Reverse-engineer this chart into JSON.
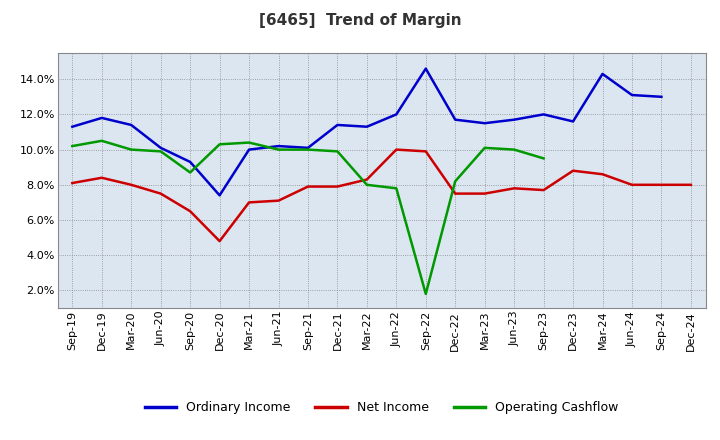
{
  "title": "[6465]  Trend of Margin",
  "x_labels": [
    "Sep-19",
    "Dec-19",
    "Mar-20",
    "Jun-20",
    "Sep-20",
    "Dec-20",
    "Mar-21",
    "Jun-21",
    "Sep-21",
    "Dec-21",
    "Mar-22",
    "Jun-22",
    "Sep-22",
    "Dec-22",
    "Mar-23",
    "Jun-23",
    "Sep-23",
    "Dec-23",
    "Mar-24",
    "Jun-24",
    "Sep-24",
    "Dec-24"
  ],
  "ordinary_income": [
    11.3,
    11.8,
    11.4,
    10.1,
    9.3,
    7.4,
    10.0,
    10.2,
    10.1,
    11.4,
    11.3,
    12.0,
    14.6,
    11.7,
    11.5,
    11.7,
    12.0,
    11.6,
    14.3,
    13.1,
    13.0,
    null
  ],
  "net_income": [
    8.1,
    8.4,
    8.0,
    7.5,
    6.5,
    4.8,
    7.0,
    7.1,
    7.9,
    7.9,
    8.3,
    10.0,
    9.9,
    7.5,
    7.5,
    7.8,
    7.7,
    8.8,
    8.6,
    8.0,
    8.0,
    8.0
  ],
  "operating_cashflow": [
    10.2,
    10.5,
    10.0,
    9.9,
    8.7,
    10.3,
    10.4,
    10.0,
    10.0,
    9.9,
    8.0,
    7.8,
    1.8,
    8.2,
    10.1,
    10.0,
    9.5,
    null,
    null,
    null,
    null,
    null
  ],
  "ordinary_income_color": "#0000cc",
  "net_income_color": "#cc0000",
  "operating_cashflow_color": "#009900",
  "background_color": "#ffffff",
  "plot_bg_color": "#dce6f1",
  "grid_color": "#888888",
  "ylim": [
    1.0,
    15.5
  ],
  "yticks": [
    2.0,
    4.0,
    6.0,
    8.0,
    10.0,
    12.0,
    14.0
  ],
  "legend_labels": [
    "Ordinary Income",
    "Net Income",
    "Operating Cashflow"
  ],
  "title_fontsize": 11,
  "tick_fontsize": 8,
  "legend_fontsize": 9,
  "line_width": 1.8
}
